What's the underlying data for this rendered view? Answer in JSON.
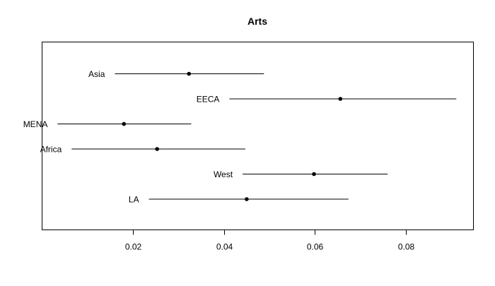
{
  "chart_data": {
    "type": "scatter",
    "subtype": "interval-dot-plot",
    "title": "Arts",
    "xlabel": "",
    "ylabel": "",
    "xlim": [
      0.0,
      0.095
    ],
    "grid": false,
    "legend": "none",
    "x_ticks": [
      0.02,
      0.04,
      0.06,
      0.08
    ],
    "x_tick_labels": [
      "0.02",
      "0.04",
      "0.06",
      "0.08"
    ],
    "series": [
      {
        "label": "Asia",
        "estimate": 0.0323,
        "lower": 0.016,
        "upper": 0.0488
      },
      {
        "label": "EECA",
        "estimate": 0.0656,
        "lower": 0.0412,
        "upper": 0.0911
      },
      {
        "label": "MENA",
        "estimate": 0.018,
        "lower": 0.0034,
        "upper": 0.0328
      },
      {
        "label": "Africa",
        "estimate": 0.0253,
        "lower": 0.0065,
        "upper": 0.0447
      },
      {
        "label": "West",
        "estimate": 0.0598,
        "lower": 0.0441,
        "upper": 0.076
      },
      {
        "label": "LA",
        "estimate": 0.045,
        "lower": 0.0235,
        "upper": 0.0674
      }
    ],
    "colors": {
      "line": "#000000",
      "point": "#000000",
      "frame": "#000000"
    }
  }
}
